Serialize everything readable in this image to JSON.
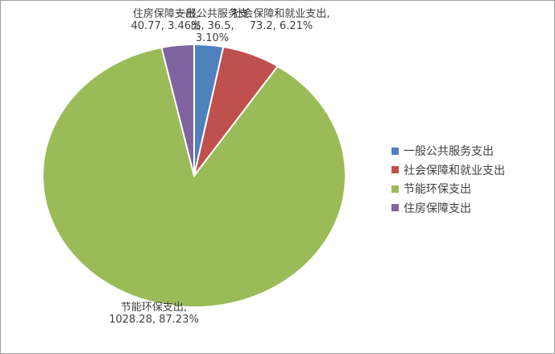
{
  "chart_data": {
    "type": "pie",
    "categories": [
      "一般公共服务支出",
      "社会保障和就业支出",
      "节能环保支出",
      "住房保障支出"
    ],
    "values": [
      36.5,
      73.2,
      1028.28,
      40.77
    ],
    "value_labels": [
      "一般公共服务支出, 36.5, 3.10%",
      "社会保障和就业支出, 73.2, 6.21%",
      "节能环保支出, 1028.28, 87.23%",
      "住房保障支出, 40.77, 3.46%"
    ],
    "colors": [
      "#4f81bd",
      "#c0504d",
      "#9bbb59",
      "#8064a2"
    ],
    "legend": "right"
  }
}
